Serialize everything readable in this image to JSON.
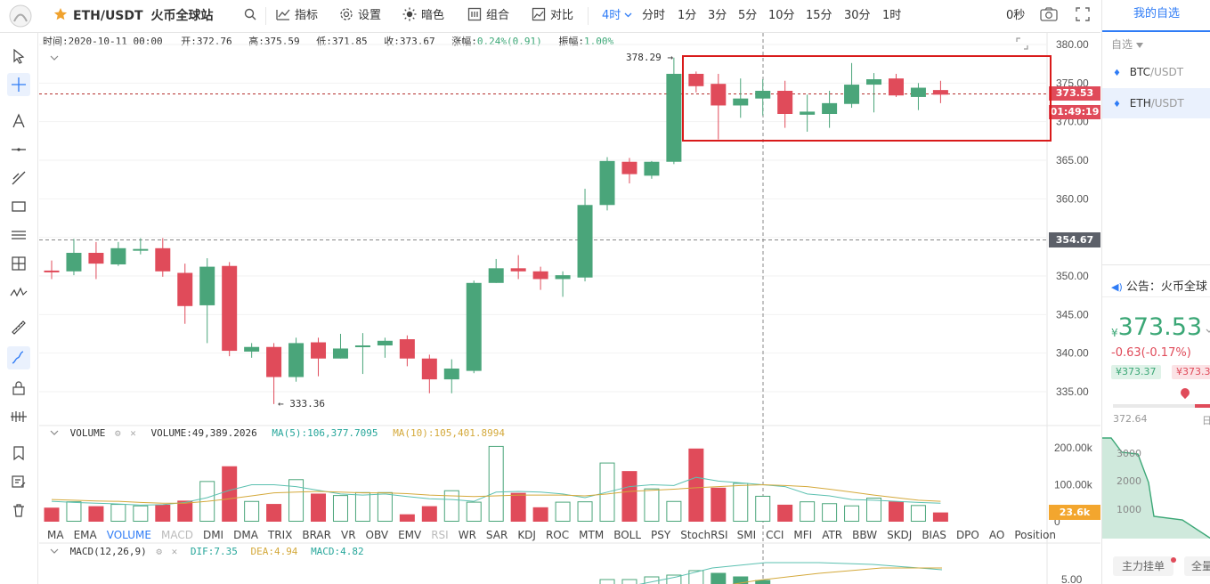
{
  "topbar": {
    "symbol": "ETH/USDT",
    "exchange": "火币全球站",
    "indicators": "指标",
    "settings": "设置",
    "theme": "暗色",
    "combo": "组合",
    "compare": "对比",
    "intervals": [
      "4时",
      "分时",
      "1分",
      "3分",
      "5分",
      "10分",
      "15分",
      "30分",
      "1时"
    ],
    "interval_selected": "4时",
    "countdown": "0秒"
  },
  "ohlc": {
    "time_label": "时间:",
    "time": "2020-10-11 00:00",
    "open_label": "开:",
    "open": "372.76",
    "high_label": "高:",
    "high": "375.59",
    "low_label": "低:",
    "low": "371.85",
    "close_label": "收:",
    "close": "373.67",
    "change_label": "涨幅:",
    "change": "0.24%(0.91)",
    "amp_label": "振幅:",
    "amp": "1.00%"
  },
  "volume_legend": {
    "name": "VOLUME",
    "value": "VOLUME:49,389.2026",
    "ma5": "MA(5):106,377.7095",
    "ma10": "MA(10):105,401.8994"
  },
  "macd_legend": {
    "name": "MACD(12,26,9)",
    "dif": "DIF:7.35",
    "dea": "DEA:4.94",
    "macd": "MACD:4.82"
  },
  "indicator_tabs": [
    "MA",
    "EMA",
    "VOLUME",
    "MACD",
    "DMI",
    "DMA",
    "TRIX",
    "BRAR",
    "VR",
    "OBV",
    "EMV",
    "RSI",
    "WR",
    "SAR",
    "KDJ",
    "ROC",
    "MTM",
    "BOLL",
    "PSY",
    "StochRSI",
    "SMI",
    "CCI",
    "MFI",
    "ATR",
    "BBW",
    "SKDJ",
    "BIAS",
    "DPO",
    "AO",
    "Position"
  ],
  "indicator_active": [
    "VOLUME"
  ],
  "indicator_muted": [
    "MACD",
    "RSI"
  ],
  "price_labels": {
    "current": "373.53",
    "countdown": "01:49:19",
    "crosshair": "354.67",
    "max_marker": "378.29",
    "min_marker": "333.36",
    "volume_tag": "23.6k",
    "macd_axis": "5.00"
  },
  "volume_axis": [
    "200.00k",
    "100.00k",
    "0"
  ],
  "right_panel": {
    "title": "我的自选",
    "dropdown": "自选",
    "watchlist": [
      {
        "base": "BTC",
        "quote": "/USDT"
      },
      {
        "base": "ETH",
        "quote": "/USDT"
      }
    ],
    "announcement": "公告：火币全球",
    "price_prefix": "¥",
    "price": "373.53",
    "change": "-0.63(-0.17%)",
    "bid": "¥373.37",
    "ask": "¥373.3",
    "low_label": "372.64",
    "day_label": "日",
    "depth_axis": [
      "3000",
      "2000",
      "1000"
    ],
    "btn_main": "主力挂单",
    "btn_all": "全量"
  },
  "colors": {
    "up": "#4aa57a",
    "down": "#e04b5a",
    "accent": "#2f7cf6",
    "highlight_box": "#d91a1a",
    "ma5": "#5bc0b0",
    "ma10": "#d4a93b"
  },
  "chart_data": {
    "type": "candlestick",
    "price_axis": [
      380,
      375,
      370,
      365,
      360,
      355,
      350,
      345,
      340,
      335
    ],
    "candles": [
      {
        "o": 350.7,
        "h": 352,
        "l": 349.6,
        "c": 350.5
      },
      {
        "o": 350.6,
        "h": 354.8,
        "l": 350.1,
        "c": 353.0
      },
      {
        "o": 353.0,
        "h": 354.4,
        "l": 349.6,
        "c": 351.6
      },
      {
        "o": 351.5,
        "h": 354.4,
        "l": 351.3,
        "c": 353.6
      },
      {
        "o": 353.5,
        "h": 354.9,
        "l": 352.8,
        "c": 353.5
      },
      {
        "o": 353.6,
        "h": 354.9,
        "l": 349.9,
        "c": 350.6
      },
      {
        "o": 350.4,
        "h": 351.6,
        "l": 343.8,
        "c": 346.1
      },
      {
        "o": 346.2,
        "h": 352.3,
        "l": 341.3,
        "c": 351.2
      },
      {
        "o": 351.3,
        "h": 351.8,
        "l": 339.6,
        "c": 340.3
      },
      {
        "o": 340.2,
        "h": 341.3,
        "l": 339.4,
        "c": 340.8
      },
      {
        "o": 340.8,
        "h": 341.3,
        "l": 333.4,
        "c": 336.9
      },
      {
        "o": 336.9,
        "h": 342.0,
        "l": 336.3,
        "c": 341.3
      },
      {
        "o": 341.4,
        "h": 342.0,
        "l": 337.0,
        "c": 339.3
      },
      {
        "o": 339.3,
        "h": 342.5,
        "l": 339.3,
        "c": 340.6
      },
      {
        "o": 340.8,
        "h": 342.6,
        "l": 337.3,
        "c": 341.0
      },
      {
        "o": 341.0,
        "h": 342.0,
        "l": 339.4,
        "c": 341.6
      },
      {
        "o": 341.8,
        "h": 342.3,
        "l": 338.3,
        "c": 339.3
      },
      {
        "o": 339.3,
        "h": 339.8,
        "l": 334.8,
        "c": 336.6
      },
      {
        "o": 336.6,
        "h": 339.2,
        "l": 334.8,
        "c": 338.0
      },
      {
        "o": 337.7,
        "h": 349.4,
        "l": 337.4,
        "c": 349.1
      },
      {
        "o": 349.1,
        "h": 352.2,
        "l": 349.1,
        "c": 351.0
      },
      {
        "o": 351.0,
        "h": 352.7,
        "l": 349.6,
        "c": 350.6
      },
      {
        "o": 350.6,
        "h": 351.2,
        "l": 348.2,
        "c": 349.6
      },
      {
        "o": 349.6,
        "h": 350.6,
        "l": 347.3,
        "c": 350.1
      },
      {
        "o": 349.8,
        "h": 361.3,
        "l": 349.3,
        "c": 359.2
      },
      {
        "o": 359.2,
        "h": 365.4,
        "l": 358.5,
        "c": 364.9
      },
      {
        "o": 364.8,
        "h": 365.3,
        "l": 362.0,
        "c": 363.2
      },
      {
        "o": 363.0,
        "h": 364.9,
        "l": 362.6,
        "c": 364.8
      },
      {
        "o": 364.8,
        "h": 378.3,
        "l": 364.5,
        "c": 376.2
      },
      {
        "o": 376.2,
        "h": 376.5,
        "l": 373.8,
        "c": 374.6
      },
      {
        "o": 374.9,
        "h": 376.2,
        "l": 367.7,
        "c": 372.1
      },
      {
        "o": 372.1,
        "h": 375.6,
        "l": 370.5,
        "c": 373.0
      },
      {
        "o": 373.0,
        "h": 375.5,
        "l": 370.8,
        "c": 374.0
      },
      {
        "o": 374.0,
        "h": 375.3,
        "l": 369.2,
        "c": 371.0
      },
      {
        "o": 370.9,
        "h": 373.5,
        "l": 368.7,
        "c": 371.3
      },
      {
        "o": 371.0,
        "h": 374.0,
        "l": 369.2,
        "c": 372.4
      },
      {
        "o": 372.3,
        "h": 377.6,
        "l": 371.8,
        "c": 374.8
      },
      {
        "o": 374.8,
        "h": 376.3,
        "l": 371.2,
        "c": 375.5
      },
      {
        "o": 375.6,
        "h": 376.2,
        "l": 373.2,
        "c": 373.4
      },
      {
        "o": 373.2,
        "h": 375.0,
        "l": 371.5,
        "c": 374.4
      },
      {
        "o": 374.1,
        "h": 375.3,
        "l": 372.4,
        "c": 373.5
      }
    ],
    "volume_k": [
      38,
      55,
      42,
      48,
      44,
      46,
      57,
      110,
      150,
      56,
      48,
      115,
      76,
      72,
      80,
      80,
      20,
      42,
      85,
      54,
      205,
      78,
      39,
      54,
      55,
      160,
      137,
      90,
      56,
      198,
      92,
      105,
      70,
      46,
      55,
      50,
      44,
      65,
      55,
      45,
      25
    ],
    "vol_ma5_k": [
      55,
      52,
      50,
      48,
      45,
      46,
      52,
      65,
      85,
      100,
      100,
      95,
      85,
      75,
      72,
      75,
      68,
      62,
      60,
      55,
      80,
      82,
      80,
      75,
      65,
      80,
      95,
      100,
      98,
      120,
      110,
      105,
      100,
      95,
      75,
      70,
      60,
      58,
      55,
      52,
      50
    ],
    "vol_ma10_k": [
      60,
      58,
      56,
      55,
      52,
      50,
      50,
      55,
      62,
      70,
      78,
      80,
      82,
      80,
      78,
      78,
      76,
      72,
      70,
      68,
      70,
      72,
      72,
      72,
      70,
      75,
      82,
      85,
      88,
      92,
      95,
      98,
      100,
      98,
      95,
      88,
      80,
      72,
      65,
      58,
      55
    ]
  }
}
